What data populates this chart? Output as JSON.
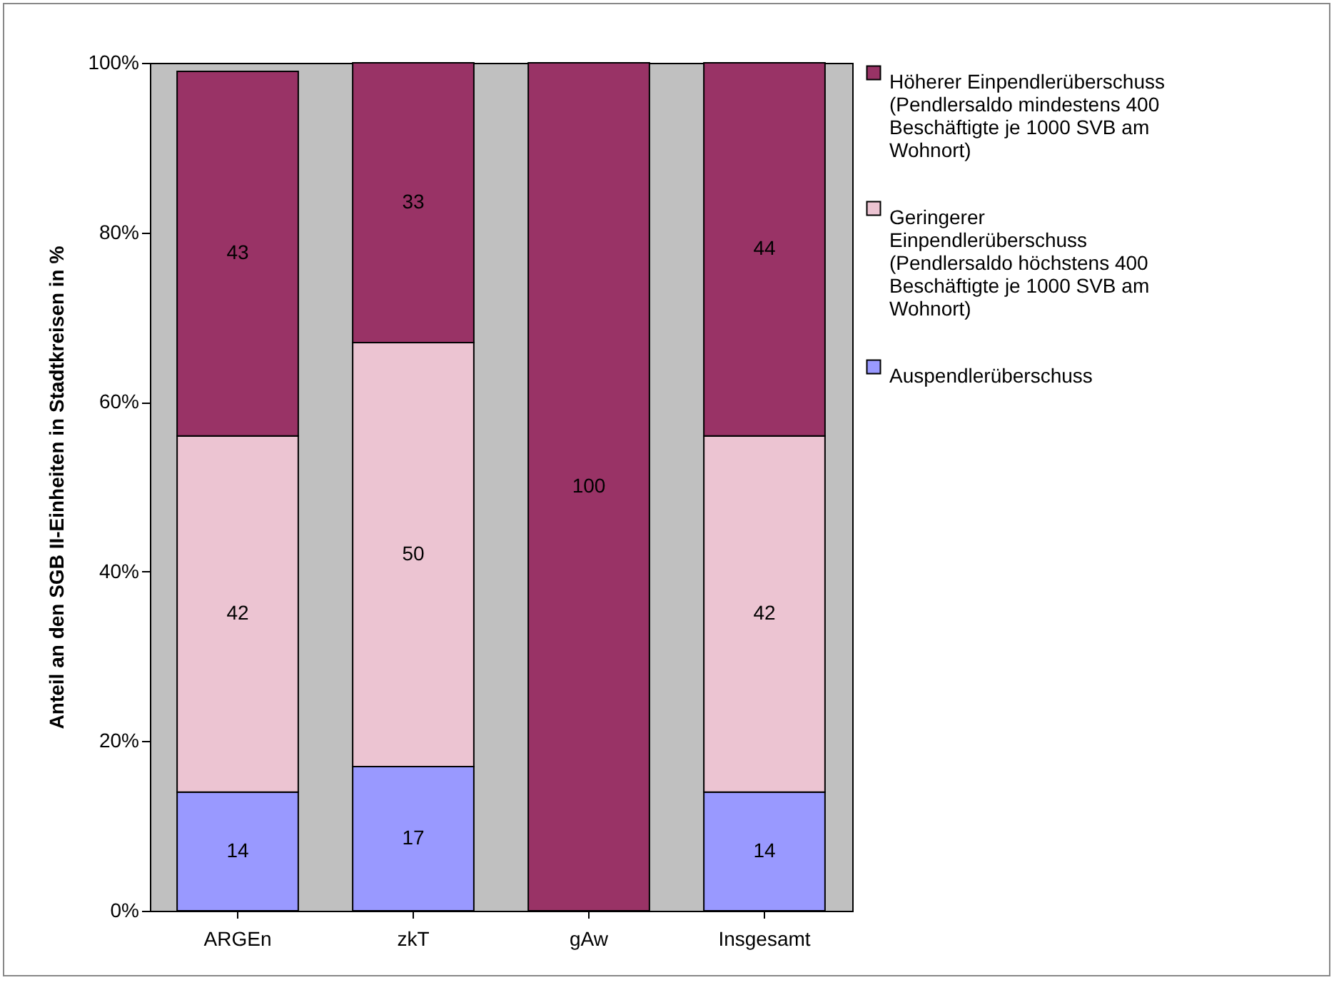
{
  "chart_data": {
    "type": "bar",
    "stacked": true,
    "ylabel": "Anteil an den SGB II-Einheiten in Stadtkreisen in %",
    "categories": [
      "ARGEn",
      "zkT",
      "gAw",
      "Insgesamt"
    ],
    "series": [
      {
        "name": "Auspendlerüberschuss",
        "color": "#9999ff",
        "values": [
          14,
          17,
          0,
          14
        ],
        "value_labels": [
          "14",
          "17",
          null,
          "14"
        ]
      },
      {
        "name": "Geringerer Einpendlerüberschuss (Pendlersaldo höchstens 400 Beschäftigte je 1000 SVB am Wohnort)",
        "color": "#ecc4d2",
        "values": [
          42,
          50,
          0,
          42
        ],
        "value_labels": [
          "42",
          "50",
          null,
          "42"
        ]
      },
      {
        "name": "Höherer Einpendlerüberschuss (Pendlersaldo mindestens 400 Beschäftigte je 1000 SVB am Wohnort)",
        "color": "#993366",
        "values": [
          43,
          33,
          100,
          44
        ],
        "value_labels": [
          "43",
          "33",
          "100",
          "44"
        ]
      }
    ],
    "ylim": [
      0,
      100
    ],
    "yticks": [
      {
        "value": 0,
        "label": "0%"
      },
      {
        "value": 20,
        "label": "20%"
      },
      {
        "value": 40,
        "label": "40%"
      },
      {
        "value": 60,
        "label": "60%"
      },
      {
        "value": 80,
        "label": "80%"
      },
      {
        "value": 100,
        "label": "100%"
      }
    ],
    "grid": false,
    "legend": "right"
  }
}
